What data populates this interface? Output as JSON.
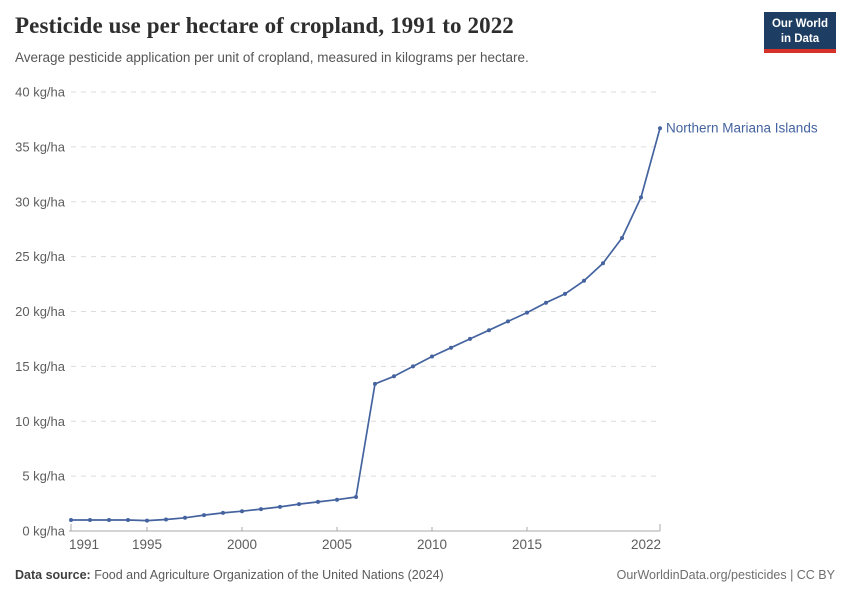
{
  "header": {
    "title": "Pesticide use per hectare of cropland, 1991 to 2022",
    "subtitle": "Average pesticide application per unit of cropland, measured in kilograms per hectare.",
    "logo_line1": "Our World",
    "logo_line2": "in Data"
  },
  "chart_data": {
    "type": "line",
    "title": "Pesticide use per hectare of cropland, 1991 to 2022",
    "xlabel": "",
    "ylabel": "kg/ha",
    "xlim": [
      1991,
      2022
    ],
    "ylim": [
      0,
      40
    ],
    "x_ticks": [
      1991,
      1995,
      2000,
      2005,
      2010,
      2015,
      2022
    ],
    "y_ticks": [
      0,
      5,
      10,
      15,
      20,
      25,
      30,
      35,
      40
    ],
    "y_tick_suffix": " kg/ha",
    "grid": true,
    "legend_position": "end-of-line",
    "x": [
      1991,
      1992,
      1993,
      1994,
      1995,
      1996,
      1997,
      1998,
      1999,
      2000,
      2001,
      2002,
      2003,
      2004,
      2005,
      2006,
      2007,
      2008,
      2009,
      2010,
      2011,
      2012,
      2013,
      2014,
      2015,
      2016,
      2017,
      2018,
      2019,
      2020,
      2021,
      2022
    ],
    "series": [
      {
        "name": "Northern Mariana Islands",
        "color": "#44639f",
        "values": [
          1.0,
          1.0,
          1.0,
          1.0,
          0.95,
          1.05,
          1.2,
          1.45,
          1.65,
          1.8,
          2.0,
          2.2,
          2.45,
          2.65,
          2.85,
          3.1,
          13.4,
          14.1,
          15.0,
          15.9,
          16.7,
          17.5,
          18.3,
          19.1,
          19.9,
          20.8,
          21.6,
          22.8,
          24.4,
          26.7,
          30.4,
          36.7
        ]
      }
    ]
  },
  "colors": {
    "line": "#44639f",
    "grid": "#dcdcdc",
    "axis": "#a8a8a8",
    "tick_label": "#5d5d5d",
    "title": "#2e2e2e",
    "subtitle": "#565656",
    "logo_bg": "#1d3d63",
    "logo_red": "#d7322a"
  },
  "footer": {
    "source_label": "Data source:",
    "source_text": " Food and Agriculture Organization of the United Nations (2024)",
    "credit": "OurWorldinData.org/pesticides | CC BY"
  }
}
